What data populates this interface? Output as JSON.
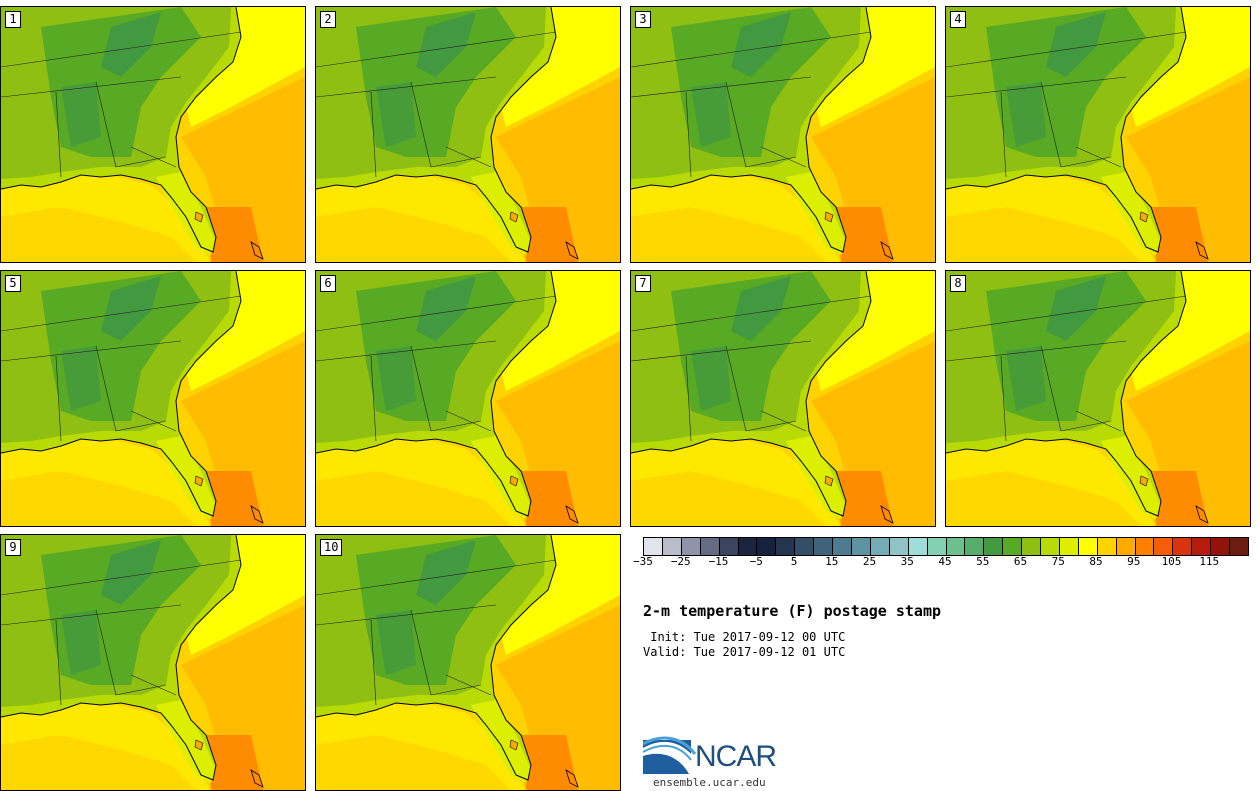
{
  "panels": [
    {
      "label": "1"
    },
    {
      "label": "2"
    },
    {
      "label": "3"
    },
    {
      "label": "4"
    },
    {
      "label": "5"
    },
    {
      "label": "6"
    },
    {
      "label": "7"
    },
    {
      "label": "8"
    },
    {
      "label": "9"
    },
    {
      "label": "10"
    }
  ],
  "colorbar": {
    "colors": [
      "#e1e4ea",
      "#b9bdc9",
      "#8f95a8",
      "#646b82",
      "#3c4560",
      "#1c2540",
      "#15213d",
      "#24364f",
      "#344e68",
      "#40637c",
      "#4d7b90",
      "#5e93a2",
      "#74abb5",
      "#8fc3c6",
      "#9fded8",
      "#83d1b2",
      "#6cc08d",
      "#57ad6c",
      "#43993f",
      "#58a923",
      "#8ebf12",
      "#b8db06",
      "#dcef00",
      "#ffff00",
      "#ffd300",
      "#ffaa00",
      "#ff8000",
      "#f55d09",
      "#d8350e",
      "#b51c0d",
      "#93130b",
      "#6d1c10"
    ],
    "tick_labels": [
      "−35",
      "−25",
      "−15",
      "−5",
      "5",
      "15",
      "25",
      "35",
      "45",
      "55",
      "65",
      "75",
      "85",
      "95",
      "105",
      "115"
    ]
  },
  "title": "2-m temperature (F) postage stamp",
  "init": " Init: Tue 2017-09-12 00 UTC",
  "valid": "Valid: Tue 2017-09-12 01 UTC",
  "logo": {
    "text": "NCAR",
    "url": "ensemble.ucar.edu"
  }
}
